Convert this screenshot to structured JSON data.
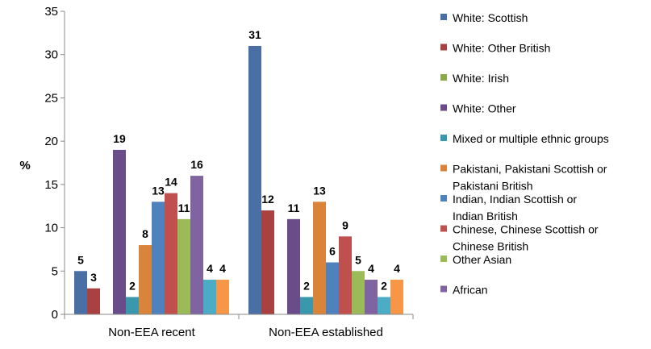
{
  "chart_data": {
    "type": "bar",
    "ylabel": "%",
    "ylim": [
      0,
      35
    ],
    "yticks": [
      0,
      5,
      10,
      15,
      20,
      25,
      30,
      35
    ],
    "categories": [
      "Non-EEA recent",
      "Non-EEA established"
    ],
    "legend_position": "right",
    "series": [
      {
        "name": "White: Scottish",
        "color": "#4A6FA5",
        "values": [
          5,
          31
        ]
      },
      {
        "name": "White: Other British",
        "color": "#A8413F",
        "values": [
          3,
          12
        ]
      },
      {
        "name": "White: Irish",
        "color": "#8AAA4A",
        "values": [
          null,
          null
        ]
      },
      {
        "name": "White: Other",
        "color": "#6B4C8A",
        "values": [
          19,
          11
        ]
      },
      {
        "name": "Mixed or multiple ethnic groups",
        "color": "#3A98AC",
        "values": [
          2,
          2
        ]
      },
      {
        "name": "Pakistani, Pakistani Scottish or Pakistani British",
        "color": "#D9843A",
        "values": [
          8,
          13
        ]
      },
      {
        "name": "Indian, Indian Scottish or Indian British",
        "color": "#4F81BD",
        "values": [
          13,
          6
        ]
      },
      {
        "name": "Chinese, Chinese Scottish or Chinese British",
        "color": "#C0504D",
        "values": [
          14,
          9
        ]
      },
      {
        "name": "Other Asian",
        "color": "#9BBB59",
        "values": [
          11,
          5
        ]
      },
      {
        "name": "African",
        "color": "#8064A2",
        "values": [
          16,
          4
        ]
      },
      {
        "name": "",
        "color": "#4BACC6",
        "values": [
          4,
          2
        ]
      },
      {
        "name": "",
        "color": "#F79646",
        "values": [
          4,
          4
        ]
      }
    ]
  }
}
